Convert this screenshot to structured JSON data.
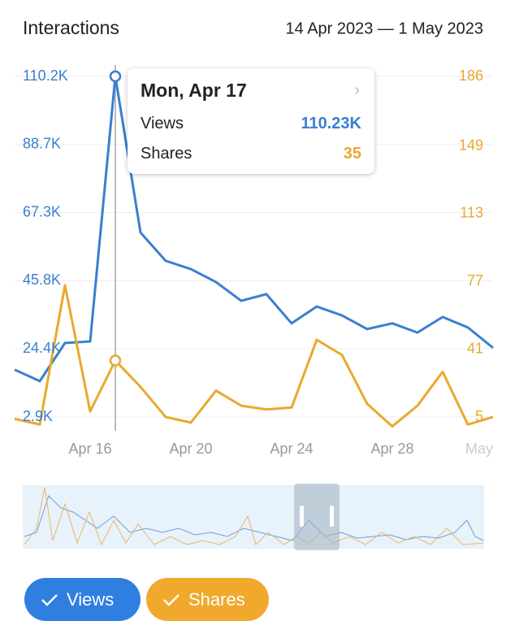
{
  "chart_data": {
    "type": "line",
    "title": "Interactions",
    "subtitle": "14 Apr 2023 — 1 May 2023",
    "categories": [
      null,
      null,
      null,
      "Apr 16",
      null,
      null,
      null,
      "Apr 20",
      null,
      null,
      null,
      "Apr 24",
      null,
      null,
      null,
      "Apr 28",
      null,
      null,
      null,
      "May"
    ],
    "series": [
      {
        "name": "Views",
        "color": "#3a7fd0",
        "axis": "y",
        "values": [
          17800,
          14200,
          26200,
          26700,
          110230,
          61000,
          52100,
          49500,
          45400,
          39500,
          41600,
          32400,
          37700,
          34900,
          30600,
          32400,
          29500,
          34400,
          31100,
          24700
        ]
      },
      {
        "name": "Shares",
        "color": "#e8a92e",
        "axis": "y2",
        "values": [
          4,
          1,
          75,
          8,
          35,
          21,
          5,
          2,
          19,
          11,
          9,
          10,
          46,
          38,
          12,
          0,
          11,
          29,
          1,
          5
        ]
      }
    ],
    "ylim": [
      2900,
      110200
    ],
    "yticks": [
      {
        "value": 2900,
        "label": "2.9K"
      },
      {
        "value": 24400,
        "label": "24.4K"
      },
      {
        "value": 45800,
        "label": "45.8K"
      },
      {
        "value": 67300,
        "label": "67.3K"
      },
      {
        "value": 88700,
        "label": "88.7K"
      },
      {
        "value": 110200,
        "label": "110.2K"
      }
    ],
    "y2lim": [
      5,
      186
    ],
    "y2ticks": [
      5,
      41,
      77,
      113,
      149,
      186
    ],
    "grid": true,
    "tooltip": {
      "title": "Mon, Apr 17",
      "rows": [
        {
          "name": "Views",
          "value": "110.23K"
        },
        {
          "name": "Shares",
          "value": "35"
        }
      ]
    }
  }
}
